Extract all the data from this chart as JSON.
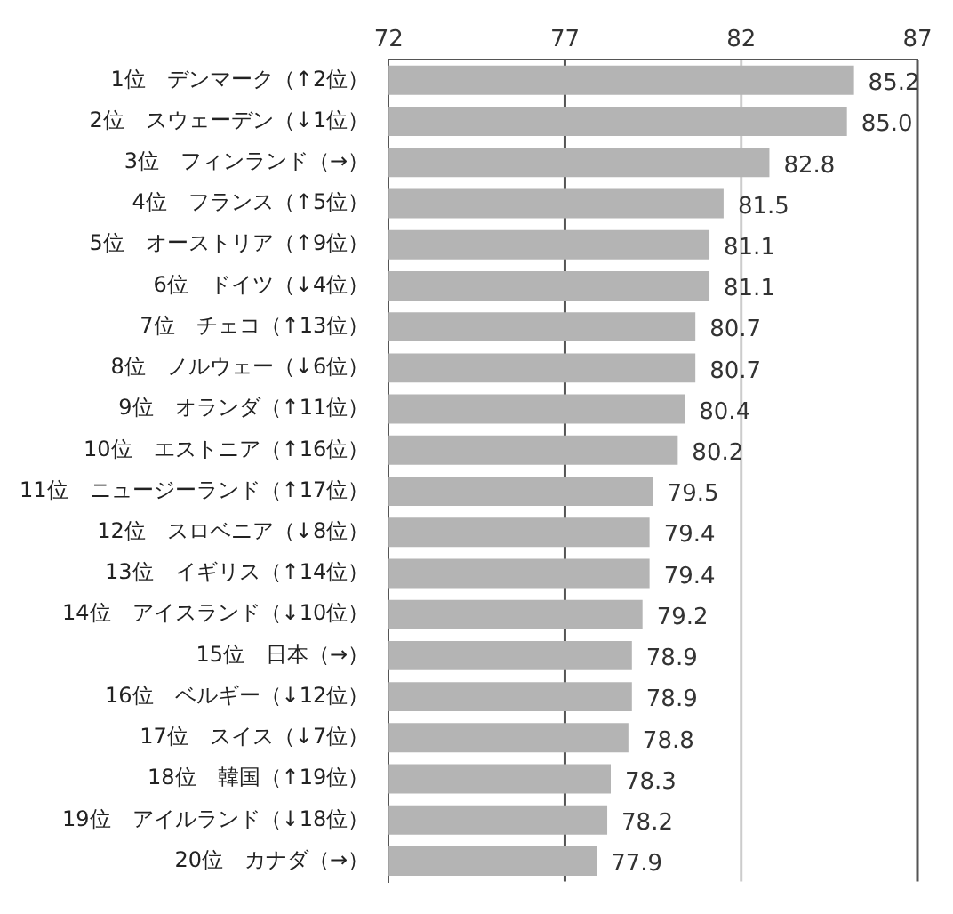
{
  "chart_data": {
    "type": "bar",
    "orientation": "horizontal",
    "categories": [
      "1位　デンマーク（↑2位）",
      "2位　スウェーデン（↓1位）",
      "3位　フィンランド（→）",
      "4位　フランス（↑5位）",
      "5位　オーストリア（↑9位）",
      "6位　ドイツ（↓4位）",
      "7位　チェコ（↑13位）",
      "8位　ノルウェー（↓6位）",
      "9位　オランダ（↑11位）",
      "10位　エストニア（↑16位）",
      "11位　ニュージーランド（↑17位）",
      "12位　スロベニア（↓8位）",
      "13位　イギリス（↑14位）",
      "14位　アイスランド（↓10位）",
      "15位　日本（→）",
      "16位　ベルギー（↓12位）",
      "17位　スイス（↓7位）",
      "18位　韓国（↑19位）",
      "19位　アイルランド（↓18位）",
      "20位　カナダ（→）"
    ],
    "values": [
      85.2,
      85.0,
      82.8,
      81.5,
      81.1,
      81.1,
      80.7,
      80.7,
      80.4,
      80.2,
      79.5,
      79.4,
      79.4,
      79.2,
      78.9,
      78.9,
      78.8,
      78.3,
      78.2,
      77.9
    ],
    "value_labels": [
      "85.2",
      "85.0",
      "82.8",
      "81.5",
      "81.1",
      "81.1",
      "80.7",
      "80.7",
      "80.4",
      "80.2",
      "79.5",
      "79.4",
      "79.4",
      "79.2",
      "78.9",
      "78.9",
      "78.8",
      "78.3",
      "78.2",
      "77.9"
    ],
    "color": "#b4b4b4",
    "xlim": [
      72,
      87
    ],
    "xticks": [
      72,
      77,
      82,
      87
    ],
    "ref_lines": [
      {
        "axis": "x",
        "value": 77,
        "color": "#555555"
      },
      {
        "axis": "x",
        "value": 82,
        "color": "#cccccc"
      }
    ]
  }
}
